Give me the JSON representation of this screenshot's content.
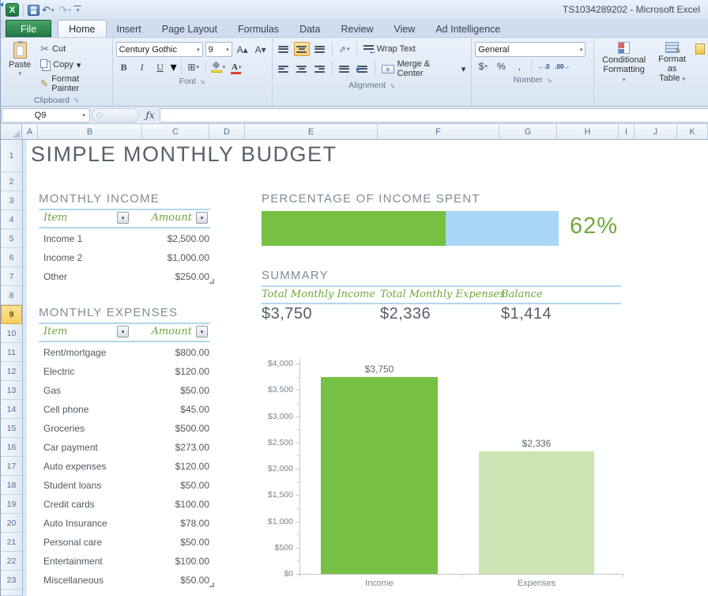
{
  "window": {
    "title": "TS1034289202  -  Microsoft Excel"
  },
  "icons": {
    "excel": "X",
    "undo": "↶",
    "redo": "↷",
    "dd": "▾",
    "cut": "✂",
    "painter": "✎",
    "bold": "B",
    "italic": "I",
    "underline": "U",
    "grow": "A▴",
    "shrink": "A▾",
    "border": "⊞",
    "font_color": "A",
    "orientation": "⇗",
    "wrap_arrow": "↩",
    "dollar": "$",
    "percent": "%",
    "comma": ",",
    "dec_inc": "←.0",
    "dec_dec": ".00→",
    "dialog": "⇘",
    "fx": "ƒx"
  },
  "ribbon": {
    "tabs": [
      "File",
      "Home",
      "Insert",
      "Page Layout",
      "Formulas",
      "Data",
      "Review",
      "View",
      "Ad Intelligence"
    ],
    "active_tab": "Home",
    "clipboard": {
      "label": "Clipboard",
      "paste": "Paste",
      "cut": "Cut",
      "copy": "Copy",
      "format_painter": "Format Painter"
    },
    "font": {
      "label": "Font",
      "family": "Century Gothic",
      "size": "9"
    },
    "alignment": {
      "label": "Alignment",
      "wrap": "Wrap Text",
      "merge": "Merge & Center"
    },
    "number": {
      "label": "Number",
      "format": "General"
    },
    "styles": {
      "conditional_1": "Conditional",
      "conditional_2": "Formatting",
      "table_1": "Format",
      "table_2": "as Table"
    }
  },
  "formula_bar": {
    "cell_ref": "Q9",
    "formula": ""
  },
  "grid": {
    "columns": [
      "A",
      "B",
      "C",
      "D",
      "E",
      "F",
      "G",
      "H",
      "I",
      "J",
      "K"
    ],
    "row_count": 23,
    "selected_row": 9
  },
  "sheet": {
    "title": "SIMPLE MONTHLY BUDGET",
    "income": {
      "heading": "MONTHLY INCOME",
      "item_header": "Item",
      "amount_header": "Amount",
      "rows": [
        {
          "item": "Income 1",
          "amount": "$2,500.00"
        },
        {
          "item": "Income 2",
          "amount": "$1,000.00"
        },
        {
          "item": "Other",
          "amount": "$250.00"
        }
      ]
    },
    "expenses": {
      "heading": "MONTHLY EXPENSES",
      "item_header": "Item",
      "amount_header": "Amount",
      "rows": [
        {
          "item": "Rent/mortgage",
          "amount": "$800.00"
        },
        {
          "item": "Electric",
          "amount": "$120.00"
        },
        {
          "item": "Gas",
          "amount": "$50.00"
        },
        {
          "item": "Cell phone",
          "amount": "$45.00"
        },
        {
          "item": "Groceries",
          "amount": "$500.00"
        },
        {
          "item": "Car payment",
          "amount": "$273.00"
        },
        {
          "item": "Auto expenses",
          "amount": "$120.00"
        },
        {
          "item": "Student loans",
          "amount": "$50.00"
        },
        {
          "item": "Credit cards",
          "amount": "$100.00"
        },
        {
          "item": "Auto Insurance",
          "amount": "$78.00"
        },
        {
          "item": "Personal care",
          "amount": "$50.00"
        },
        {
          "item": "Entertainment",
          "amount": "$100.00"
        },
        {
          "item": "Miscellaneous",
          "amount": "$50.00"
        }
      ]
    },
    "percent_spent": {
      "heading": "PERCENTAGE OF INCOME SPENT",
      "value_label": "62%",
      "percent": 62
    },
    "summary": {
      "heading": "SUMMARY",
      "columns": [
        {
          "label": "Total Monthly Income",
          "value": "$3,750"
        },
        {
          "label": "Total Monthly Expenses",
          "value": "$2,336"
        },
        {
          "label": "Balance",
          "value": "$1,414"
        }
      ]
    }
  },
  "chart_data": {
    "type": "bar",
    "categories": [
      "Income",
      "Expenses"
    ],
    "values": [
      3750,
      2336
    ],
    "data_labels": [
      "$3,750",
      "$2,336"
    ],
    "title": "",
    "xlabel": "",
    "ylabel": "",
    "ylim": [
      0,
      4000
    ],
    "ytick_step": 500,
    "ytick_minor_step": 250,
    "ytick_prefix": "$",
    "grid": false,
    "legend": false,
    "bar_colors": [
      "#76c043",
      "#cde5b4"
    ]
  },
  "colors": {
    "accent_green": "#76c043",
    "light_green": "#cde5b4",
    "bar_blue": "#a9d6f5",
    "line_blue": "#b1d6ee",
    "header_green": "#6fa63e",
    "row_highlight": "#fbcf62"
  }
}
